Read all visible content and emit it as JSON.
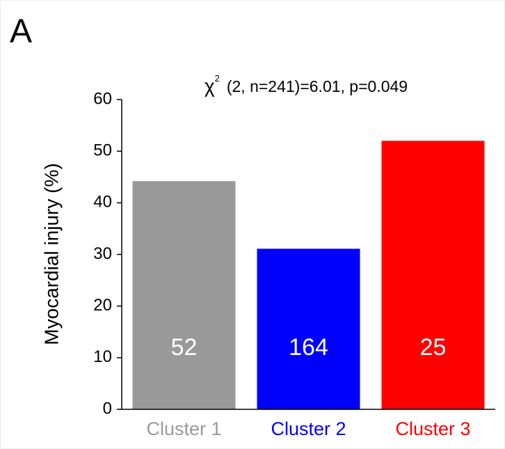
{
  "panel_label": "A",
  "chart_data": {
    "type": "bar",
    "title_symbol": "χ",
    "title_superscript": "2",
    "title": "(2, n=241)=6.01, p=0.049",
    "y_label": "Myocardial injury (%)",
    "categories": [
      "Cluster 1",
      "Cluster 2",
      "Cluster 3"
    ],
    "values": [
      44.2,
      31.1,
      52.0
    ],
    "colors": [
      "#999999",
      "#0000ff",
      "#ff0000"
    ],
    "n_labels": [
      52,
      164,
      25
    ],
    "ylim": [
      0,
      60
    ],
    "yticks": [
      0,
      10,
      20,
      30,
      40,
      50,
      60
    ],
    "grid": false
  }
}
